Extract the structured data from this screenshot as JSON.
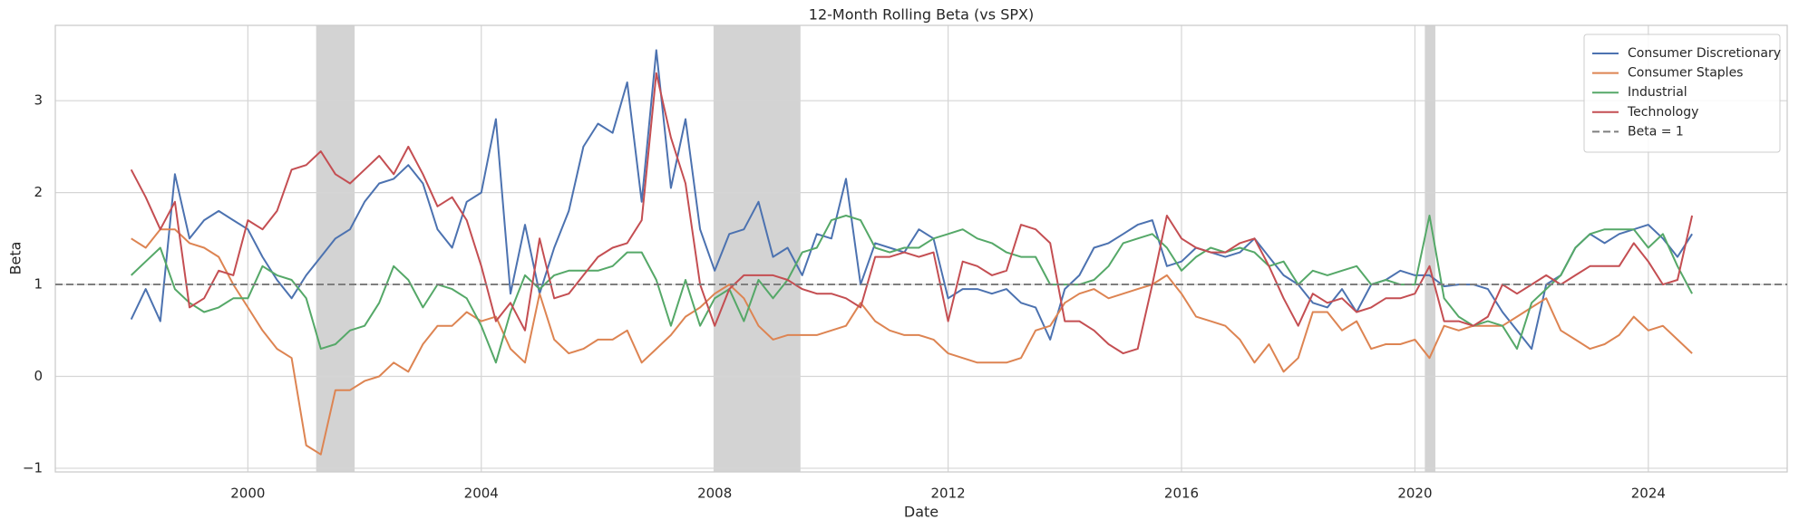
{
  "chart_data": {
    "type": "line",
    "title": "12-Month Rolling Beta (vs SPX)",
    "x_label": "Date",
    "y_label": "Beta",
    "x": [
      1998.0,
      1998.25,
      1998.5,
      1998.75,
      1999.0,
      1999.25,
      1999.5,
      1999.75,
      2000.0,
      2000.25,
      2000.5,
      2000.75,
      2001.0,
      2001.25,
      2001.5,
      2001.75,
      2002.0,
      2002.25,
      2002.5,
      2002.75,
      2003.0,
      2003.25,
      2003.5,
      2003.75,
      2004.0,
      2004.25,
      2004.5,
      2004.75,
      2005.0,
      2005.25,
      2005.5,
      2005.75,
      2006.0,
      2006.25,
      2006.5,
      2006.75,
      2007.0,
      2007.25,
      2007.5,
      2007.75,
      2008.0,
      2008.25,
      2008.5,
      2008.75,
      2009.0,
      2009.25,
      2009.5,
      2009.75,
      2010.0,
      2010.25,
      2010.5,
      2010.75,
      2011.0,
      2011.25,
      2011.5,
      2011.75,
      2012.0,
      2012.25,
      2012.5,
      2012.75,
      2013.0,
      2013.25,
      2013.5,
      2013.75,
      2014.0,
      2014.25,
      2014.5,
      2014.75,
      2015.0,
      2015.25,
      2015.5,
      2015.75,
      2016.0,
      2016.25,
      2016.5,
      2016.75,
      2017.0,
      2017.25,
      2017.5,
      2017.75,
      2018.0,
      2018.25,
      2018.5,
      2018.75,
      2019.0,
      2019.25,
      2019.5,
      2019.75,
      2020.0,
      2020.25,
      2020.5,
      2020.75,
      2021.0,
      2021.25,
      2021.5,
      2021.75,
      2022.0,
      2022.25,
      2022.5,
      2022.75,
      2023.0,
      2023.25,
      2023.5,
      2023.75,
      2024.0,
      2024.25,
      2024.5,
      2024.75
    ],
    "series": [
      {
        "name": "Consumer Discretionary",
        "color": "#4c72b0",
        "values": [
          0.62,
          0.95,
          0.6,
          2.2,
          1.5,
          1.7,
          1.8,
          1.7,
          1.6,
          1.3,
          1.05,
          0.85,
          1.1,
          1.3,
          1.5,
          1.6,
          1.9,
          2.1,
          2.15,
          2.3,
          2.1,
          1.6,
          1.4,
          1.9,
          2.0,
          2.8,
          0.9,
          1.65,
          0.9,
          1.4,
          1.8,
          2.5,
          2.75,
          2.65,
          3.2,
          1.9,
          3.55,
          2.05,
          2.8,
          1.6,
          1.15,
          1.55,
          1.6,
          1.9,
          1.3,
          1.4,
          1.1,
          1.55,
          1.5,
          2.15,
          1.0,
          1.45,
          1.4,
          1.35,
          1.6,
          1.5,
          0.85,
          0.95,
          0.95,
          0.9,
          0.95,
          0.8,
          0.75,
          0.4,
          0.95,
          1.1,
          1.4,
          1.45,
          1.55,
          1.65,
          1.7,
          1.2,
          1.25,
          1.4,
          1.35,
          1.3,
          1.35,
          1.5,
          1.3,
          1.1,
          1.0,
          0.8,
          0.75,
          0.95,
          0.7,
          1.0,
          1.05,
          1.15,
          1.1,
          1.1,
          0.98,
          1.0,
          1.0,
          0.95,
          0.7,
          0.5,
          0.3,
          1.0,
          1.1,
          1.4,
          1.55,
          1.45,
          1.55,
          1.6,
          1.65,
          1.5,
          1.3,
          1.55
        ]
      },
      {
        "name": "Consumer Staples",
        "color": "#dd8452",
        "values": [
          1.5,
          1.4,
          1.6,
          1.6,
          1.45,
          1.4,
          1.3,
          1.0,
          0.75,
          0.5,
          0.3,
          0.2,
          -0.75,
          -0.85,
          -0.15,
          -0.15,
          -0.05,
          0.0,
          0.15,
          0.05,
          0.35,
          0.55,
          0.55,
          0.7,
          0.6,
          0.65,
          0.3,
          0.15,
          0.9,
          0.4,
          0.25,
          0.3,
          0.4,
          0.4,
          0.5,
          0.15,
          0.3,
          0.45,
          0.65,
          0.75,
          0.9,
          1.0,
          0.85,
          0.55,
          0.4,
          0.45,
          0.45,
          0.45,
          0.5,
          0.55,
          0.8,
          0.6,
          0.5,
          0.45,
          0.45,
          0.4,
          0.25,
          0.2,
          0.15,
          0.15,
          0.15,
          0.2,
          0.5,
          0.55,
          0.8,
          0.9,
          0.95,
          0.85,
          0.9,
          0.95,
          1.0,
          1.1,
          0.9,
          0.65,
          0.6,
          0.55,
          0.4,
          0.15,
          0.35,
          0.05,
          0.2,
          0.7,
          0.7,
          0.5,
          0.6,
          0.3,
          0.35,
          0.35,
          0.4,
          0.2,
          0.55,
          0.5,
          0.55,
          0.55,
          0.55,
          0.65,
          0.75,
          0.85,
          0.5,
          0.4,
          0.3,
          0.35,
          0.45,
          0.65,
          0.5,
          0.55,
          0.4,
          0.25
        ]
      },
      {
        "name": "Industrial",
        "color": "#55a868",
        "values": [
          1.1,
          1.25,
          1.4,
          0.95,
          0.8,
          0.7,
          0.75,
          0.85,
          0.85,
          1.2,
          1.1,
          1.05,
          0.85,
          0.3,
          0.35,
          0.5,
          0.55,
          0.8,
          1.2,
          1.05,
          0.75,
          1.0,
          0.95,
          0.85,
          0.55,
          0.15,
          0.7,
          1.1,
          0.95,
          1.1,
          1.15,
          1.15,
          1.15,
          1.2,
          1.35,
          1.35,
          1.05,
          0.55,
          1.05,
          0.55,
          0.85,
          0.95,
          0.6,
          1.05,
          0.85,
          1.05,
          1.35,
          1.4,
          1.7,
          1.75,
          1.7,
          1.4,
          1.35,
          1.4,
          1.4,
          1.5,
          1.55,
          1.6,
          1.5,
          1.45,
          1.35,
          1.3,
          1.3,
          1.0,
          1.0,
          1.0,
          1.05,
          1.2,
          1.45,
          1.5,
          1.55,
          1.4,
          1.15,
          1.3,
          1.4,
          1.35,
          1.4,
          1.35,
          1.2,
          1.25,
          1.0,
          1.15,
          1.1,
          1.15,
          1.2,
          1.0,
          1.05,
          1.0,
          1.0,
          1.75,
          0.85,
          0.65,
          0.55,
          0.6,
          0.55,
          0.3,
          0.8,
          0.95,
          1.1,
          1.4,
          1.55,
          1.6,
          1.6,
          1.6,
          1.4,
          1.55,
          1.2,
          0.9
        ]
      },
      {
        "name": "Technology",
        "color": "#c44e52",
        "values": [
          2.25,
          1.95,
          1.6,
          1.9,
          0.75,
          0.85,
          1.15,
          1.1,
          1.7,
          1.6,
          1.8,
          2.25,
          2.3,
          2.45,
          2.2,
          2.1,
          2.25,
          2.4,
          2.2,
          2.5,
          2.2,
          1.85,
          1.95,
          1.7,
          1.2,
          0.6,
          0.8,
          0.5,
          1.5,
          0.85,
          0.9,
          1.1,
          1.3,
          1.4,
          1.45,
          1.7,
          3.3,
          2.6,
          2.1,
          1.0,
          0.55,
          0.95,
          1.1,
          1.1,
          1.1,
          1.05,
          0.95,
          0.9,
          0.9,
          0.85,
          0.75,
          1.3,
          1.3,
          1.35,
          1.3,
          1.35,
          0.6,
          1.25,
          1.2,
          1.1,
          1.15,
          1.65,
          1.6,
          1.45,
          0.6,
          0.6,
          0.5,
          0.35,
          0.25,
          0.3,
          1.0,
          1.75,
          1.5,
          1.4,
          1.35,
          1.35,
          1.45,
          1.5,
          1.2,
          0.85,
          0.55,
          0.9,
          0.8,
          0.85,
          0.7,
          0.75,
          0.85,
          0.85,
          0.9,
          1.2,
          0.6,
          0.6,
          0.55,
          0.65,
          1.0,
          0.9,
          1.0,
          1.1,
          1.0,
          1.1,
          1.2,
          1.2,
          1.2,
          1.45,
          1.25,
          1.0,
          1.05,
          1.75
        ]
      }
    ],
    "reference_line": {
      "name": "Beta = 1",
      "value": 1,
      "color": "#7f7f7f"
    },
    "shaded_regions": [
      [
        2001.17,
        2001.83
      ],
      [
        2007.98,
        2009.47
      ],
      [
        2020.17,
        2020.35
      ]
    ],
    "shade_color": "#d3d3d3",
    "xlim": [
      1996.7,
      2026.38
    ],
    "ylim": [
      -1.04,
      3.82
    ],
    "xticks": [
      2000,
      2004,
      2008,
      2012,
      2016,
      2020,
      2024
    ],
    "yticks": [
      {
        "value": -1,
        "label": "−1"
      },
      0,
      1,
      2,
      3
    ],
    "grid": true,
    "legend": "upper right"
  }
}
